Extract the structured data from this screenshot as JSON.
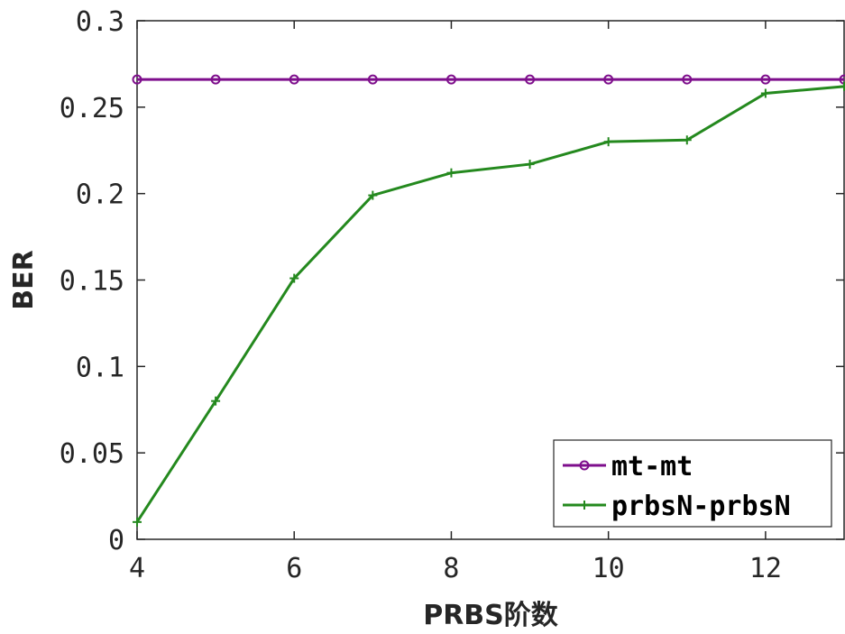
{
  "chart_data": {
    "type": "line",
    "xlabel": "PRBS阶数",
    "ylabel": "BER",
    "xlim": [
      4,
      13
    ],
    "ylim": [
      0,
      0.3
    ],
    "xticks": [
      4,
      6,
      8,
      10,
      12
    ],
    "xtick_labels": [
      "4",
      "6",
      "8",
      "10",
      "12"
    ],
    "yticks": [
      0,
      0.05,
      0.1,
      0.15,
      0.2,
      0.25,
      0.3
    ],
    "ytick_labels": [
      "0",
      "0.05",
      "0.1",
      "0.15",
      "0.2",
      "0.25",
      "0.3"
    ],
    "grid": false,
    "legend_position": "bottom-right",
    "x": [
      4,
      5,
      6,
      7,
      8,
      9,
      10,
      11,
      12,
      13
    ],
    "series": [
      {
        "name": "mt-mt",
        "color": "#7E0E8C",
        "marker": "circle",
        "values": [
          0.266,
          0.266,
          0.266,
          0.266,
          0.266,
          0.266,
          0.266,
          0.266,
          0.266,
          0.266
        ]
      },
      {
        "name": "prbsN-prbsN",
        "color": "#24891E",
        "marker": "plus",
        "values": [
          0.01,
          0.08,
          0.151,
          0.199,
          0.212,
          0.217,
          0.23,
          0.231,
          0.258,
          0.262
        ]
      }
    ]
  }
}
